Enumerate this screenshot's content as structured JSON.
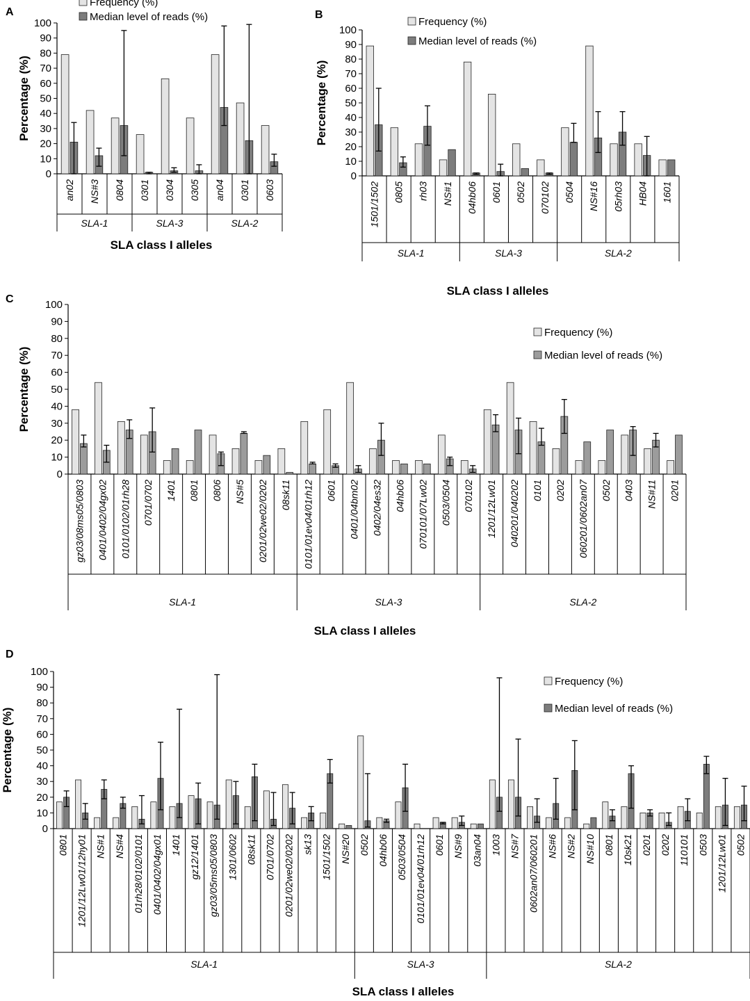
{
  "colors": {
    "frequency": "#e4e4e4",
    "median": "#9c9c9c",
    "median_dark": "#7d7d7d",
    "axis": "#000000"
  },
  "legend": {
    "frequency": "Frequency (%)",
    "median": "Median level of reads (%)"
  },
  "chart_data": [
    {
      "panel": "A",
      "type": "bar",
      "title": "",
      "xlabel": "SLA class I alleles",
      "ylabel": "Percentage (%)",
      "ylim": [
        0,
        100
      ],
      "yticks": [
        "0",
        "10",
        "20",
        "30",
        "40",
        "50",
        "60",
        "70",
        "80",
        "90",
        "100"
      ],
      "legend_position": "top",
      "categories": [
        "an02",
        "NS#3",
        "0804",
        "0301",
        "0304",
        "0305",
        "an04",
        "0301",
        "0603"
      ],
      "groups": [
        {
          "label": "SLA-1",
          "count": 3
        },
        {
          "label": "SLA-3",
          "count": 3
        },
        {
          "label": "SLA-2",
          "count": 3
        }
      ],
      "series": [
        {
          "name": "Frequency (%)",
          "values": [
            79,
            42,
            37,
            26,
            63,
            37,
            79,
            47,
            32
          ]
        },
        {
          "name": "Median level of reads (%)",
          "values": [
            21,
            12,
            32,
            1,
            2,
            2,
            44,
            22,
            8
          ],
          "err_low": [
            0,
            5,
            12,
            0,
            1,
            0,
            32,
            0,
            5
          ],
          "err_high": [
            34,
            17,
            95,
            1,
            4,
            6,
            98,
            99,
            13
          ]
        }
      ]
    },
    {
      "panel": "B",
      "type": "bar",
      "title": "",
      "xlabel": "SLA class I alleles",
      "ylabel": "Percentage (%)",
      "ylim": [
        0,
        100
      ],
      "yticks": [
        "0",
        "10",
        "20",
        "30",
        "40",
        "50",
        "60",
        "70",
        "80",
        "90",
        "100"
      ],
      "legend_position": "top-right",
      "categories": [
        "1501/1502",
        "0805",
        "rh03",
        "NS#1",
        "04hb06",
        "0601",
        "0502",
        "070102",
        "0504",
        "NS#16",
        "05rh03",
        "HB04",
        "1601"
      ],
      "groups": [
        {
          "label": "SLA-1",
          "count": 4
        },
        {
          "label": "SLA-3",
          "count": 4
        },
        {
          "label": "SLA-2",
          "count": 5
        }
      ],
      "series": [
        {
          "name": "Frequency (%)",
          "values": [
            89,
            33,
            22,
            11,
            78,
            56,
            22,
            11,
            33,
            89,
            22,
            22,
            11
          ]
        },
        {
          "name": "Median level of reads (%)",
          "values": [
            35,
            9,
            34,
            18,
            2,
            3,
            5,
            2,
            23,
            26,
            30,
            14,
            11
          ],
          "err_low": [
            17,
            6,
            21,
            18,
            1,
            0,
            5,
            1,
            23,
            16,
            21,
            0,
            11
          ],
          "err_high": [
            60,
            13,
            48,
            18,
            2,
            8,
            5,
            2,
            36,
            44,
            44,
            27,
            11
          ]
        }
      ]
    },
    {
      "panel": "C",
      "type": "bar",
      "title": "",
      "xlabel": "SLA class I alleles",
      "ylabel": "Percentage (%)",
      "ylim": [
        0,
        100
      ],
      "yticks": [
        "0",
        "10",
        "20",
        "30",
        "40",
        "50",
        "60",
        "70",
        "80",
        "90",
        "100"
      ],
      "legend_position": "right",
      "categories": [
        "gz03/08ms05/0803",
        "0401/0402/04gx02",
        "0101/0102/01rh28",
        "0701/0702",
        "1401",
        "0801",
        "0806",
        "NS#5",
        "0201/02we02/0202",
        "08sk11",
        "0101/01ev04/01rh12",
        "0601",
        "0401/04bm02",
        "0402/04es32",
        "04hb06",
        "070101/07Lw02",
        "0503/0504",
        "070102",
        "1201/12Lw01",
        "040201/040202",
        "0101",
        "0202",
        "060201/0602an07",
        "0502",
        "0403",
        "NS#11",
        "0201"
      ],
      "groups": [
        {
          "label": "SLA-1",
          "count": 10
        },
        {
          "label": "SLA-3",
          "count": 8
        },
        {
          "label": "SLA-2",
          "count": 9
        }
      ],
      "series": [
        {
          "name": "Frequency (%)",
          "values": [
            38,
            54,
            31,
            23,
            8,
            8,
            23,
            15,
            8,
            15,
            31,
            38,
            54,
            15,
            8,
            8,
            23,
            8,
            38,
            54,
            31,
            15,
            8,
            8,
            23,
            15,
            8
          ]
        },
        {
          "name": "Median level of reads (%)",
          "values": [
            18,
            14,
            26,
            25,
            15,
            26,
            12,
            24,
            11,
            1,
            6,
            5,
            3,
            20,
            6,
            6,
            9,
            3,
            29,
            26,
            19,
            34,
            19,
            26,
            26,
            20,
            23
          ],
          "err_low": [
            16,
            7,
            21,
            13,
            15,
            26,
            5,
            24,
            11,
            1,
            6,
            4,
            1,
            11,
            6,
            6,
            5,
            1,
            25,
            12,
            17,
            24,
            19,
            26,
            11,
            16,
            23
          ],
          "err_high": [
            23,
            17,
            32,
            39,
            15,
            26,
            13,
            25,
            11,
            1,
            7,
            6,
            5,
            30,
            6,
            6,
            10,
            5,
            35,
            33,
            27,
            44,
            19,
            26,
            28,
            24,
            23
          ]
        }
      ]
    },
    {
      "panel": "D",
      "type": "bar",
      "title": "",
      "xlabel": "SLA class I alleles",
      "ylabel": "Percentage (%)",
      "ylim": [
        0,
        100
      ],
      "yticks": [
        "0",
        "10",
        "20",
        "30",
        "40",
        "50",
        "60",
        "70",
        "80",
        "90",
        "100"
      ],
      "legend_position": "top-right",
      "categories": [
        "0801",
        "1201/12Lw01/12hy01",
        "NS#1",
        "NS#4",
        "01rh28/0102/0101",
        "0401/0402/04gx01",
        "1401",
        "gz12/1401",
        "gz03/05ms05/0803",
        "1301/0602",
        "08sk11",
        "0701/0702",
        "0201/02we02/0202",
        "sk13",
        "1501/1502",
        "NS#20",
        "0502",
        "04hb06",
        "0503/0504",
        "0101/01ev04/01rh12",
        "0601",
        "NS#9",
        "03an04",
        "1003",
        "NS#7",
        "0602an07/060201",
        "NS#6",
        "NS#2",
        "NS#10",
        "0801",
        "10sk21",
        "0201",
        "0202",
        "110101",
        "0503",
        "1201/12Lw01",
        "0502"
      ],
      "groups": [
        {
          "label": "SLA-1",
          "count": 16
        },
        {
          "label": "SLA-3",
          "count": 7
        },
        {
          "label": "SLA-2",
          "count": 14
        }
      ],
      "series": [
        {
          "name": "Frequency (%)",
          "values": [
            17,
            31,
            7,
            7,
            14,
            17,
            14,
            21,
            17,
            31,
            14,
            24,
            28,
            7,
            10,
            3,
            59,
            7,
            17,
            3,
            7,
            7,
            3,
            31,
            31,
            14,
            7,
            7,
            3,
            17,
            14,
            10,
            10,
            14,
            10,
            14,
            14
          ]
        },
        {
          "name": "Median level of reads (%)",
          "values": [
            20,
            10,
            25,
            16,
            6,
            32,
            16,
            19,
            15,
            21,
            33,
            6,
            13,
            10,
            35,
            2,
            5,
            5,
            26,
            0,
            4,
            4,
            3,
            20,
            20,
            8,
            16,
            37,
            7,
            8,
            35,
            10,
            4,
            11,
            41,
            15,
            15
          ],
          "err_low": [
            14,
            6,
            19,
            13,
            3,
            12,
            7,
            3,
            6,
            3,
            5,
            2,
            3,
            5,
            29,
            2,
            1,
            4,
            11,
            0,
            3,
            2,
            3,
            11,
            8,
            4,
            6,
            12,
            7,
            5,
            13,
            8,
            2,
            5,
            35,
            2,
            5
          ],
          "err_high": [
            24,
            16,
            31,
            20,
            21,
            55,
            76,
            29,
            98,
            30,
            41,
            23,
            23,
            14,
            44,
            2,
            35,
            6,
            41,
            0,
            4,
            8,
            3,
            96,
            57,
            19,
            32,
            56,
            7,
            12,
            40,
            12,
            10,
            19,
            46,
            32,
            27
          ]
        }
      ]
    }
  ]
}
